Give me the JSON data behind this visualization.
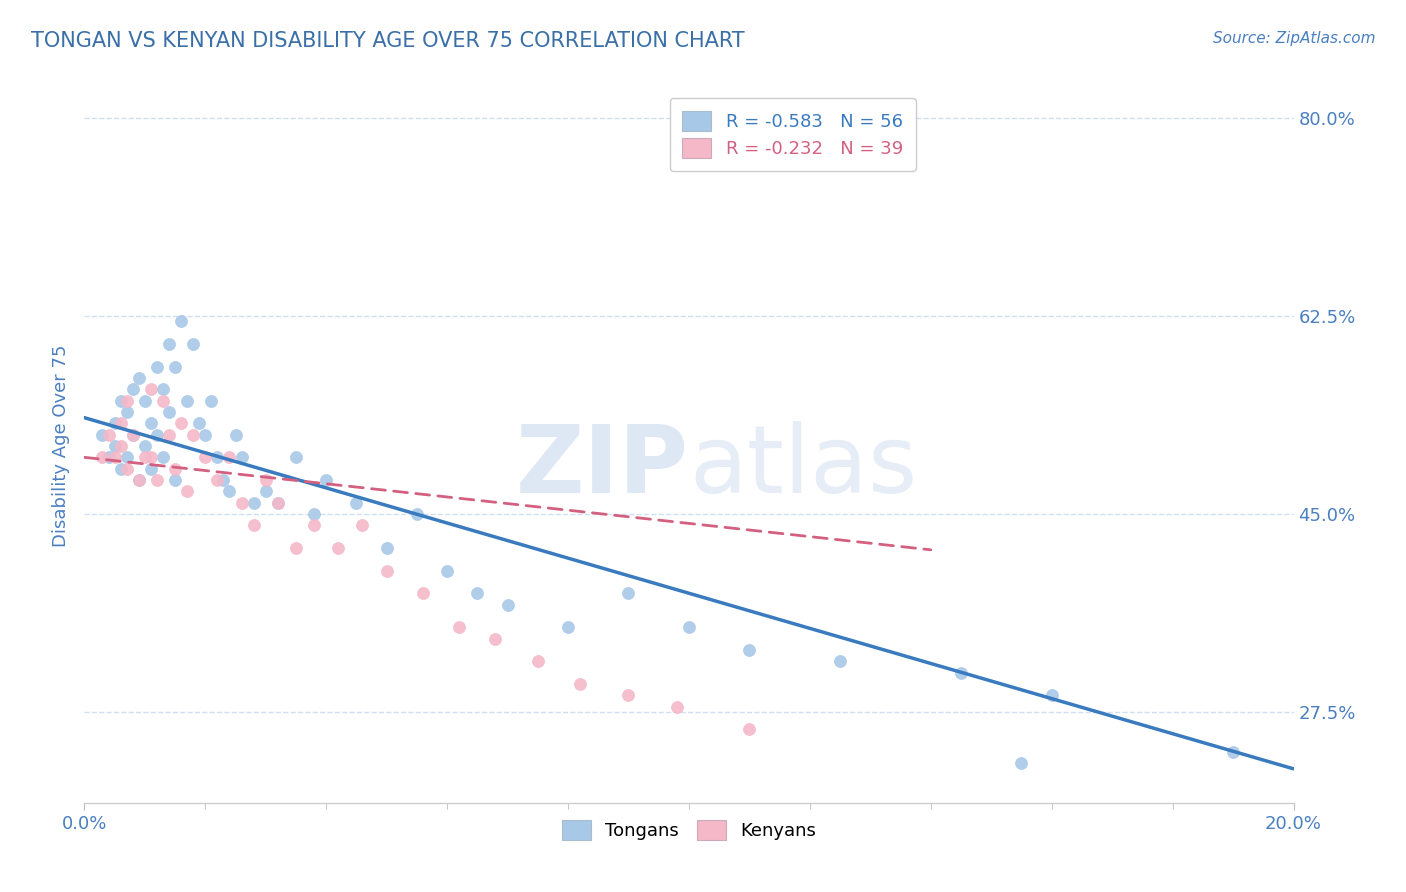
{
  "title": "TONGAN VS KENYAN DISABILITY AGE OVER 75 CORRELATION CHART",
  "source_text": "Source: ZipAtlas.com",
  "ylabel": "Disability Age Over 75",
  "xlim": [
    0.0,
    0.2
  ],
  "ylim": [
    0.195,
    0.825
  ],
  "yticks": [
    0.275,
    0.45,
    0.625,
    0.8
  ],
  "ytick_labels": [
    "27.5%",
    "45.0%",
    "62.5%",
    "80.0%"
  ],
  "tonga_color": "#a8c8e8",
  "kenya_color": "#f4b8c8",
  "tonga_line_color": "#3a7abf",
  "kenya_line_color": "#d46080",
  "title_color": "#3a6fa8",
  "tick_color": "#4a7fc0",
  "grid_color": "#d0dff0",
  "background_color": "#ffffff",
  "tonga_R": -0.583,
  "tonga_N": 56,
  "kenya_R": -0.232,
  "kenya_N": 39,
  "figsize": [
    14.06,
    8.92
  ],
  "dpi": 100,
  "tonga_x": [
    0.003,
    0.004,
    0.005,
    0.005,
    0.006,
    0.006,
    0.007,
    0.007,
    0.008,
    0.008,
    0.009,
    0.009,
    0.01,
    0.01,
    0.011,
    0.011,
    0.012,
    0.012,
    0.013,
    0.013,
    0.014,
    0.014,
    0.015,
    0.015,
    0.016,
    0.017,
    0.018,
    0.019,
    0.02,
    0.021,
    0.022,
    0.023,
    0.024,
    0.025,
    0.026,
    0.028,
    0.03,
    0.032,
    0.035,
    0.038,
    0.04,
    0.045,
    0.05,
    0.055,
    0.06,
    0.065,
    0.07,
    0.08,
    0.09,
    0.1,
    0.11,
    0.125,
    0.145,
    0.16,
    0.155,
    0.19
  ],
  "tonga_y": [
    0.52,
    0.5,
    0.51,
    0.53,
    0.49,
    0.55,
    0.5,
    0.54,
    0.52,
    0.56,
    0.48,
    0.57,
    0.51,
    0.55,
    0.49,
    0.53,
    0.58,
    0.52,
    0.5,
    0.56,
    0.6,
    0.54,
    0.48,
    0.58,
    0.62,
    0.55,
    0.6,
    0.53,
    0.52,
    0.55,
    0.5,
    0.48,
    0.47,
    0.52,
    0.5,
    0.46,
    0.47,
    0.46,
    0.5,
    0.45,
    0.48,
    0.46,
    0.42,
    0.45,
    0.4,
    0.38,
    0.37,
    0.35,
    0.38,
    0.35,
    0.33,
    0.32,
    0.31,
    0.29,
    0.23,
    0.24
  ],
  "kenya_x": [
    0.003,
    0.004,
    0.005,
    0.006,
    0.006,
    0.007,
    0.007,
    0.008,
    0.009,
    0.01,
    0.011,
    0.011,
    0.012,
    0.013,
    0.014,
    0.015,
    0.016,
    0.017,
    0.018,
    0.02,
    0.022,
    0.024,
    0.026,
    0.028,
    0.03,
    0.032,
    0.035,
    0.038,
    0.042,
    0.046,
    0.05,
    0.056,
    0.062,
    0.068,
    0.075,
    0.082,
    0.09,
    0.098,
    0.11
  ],
  "kenya_y": [
    0.5,
    0.52,
    0.5,
    0.51,
    0.53,
    0.49,
    0.55,
    0.52,
    0.48,
    0.5,
    0.56,
    0.5,
    0.48,
    0.55,
    0.52,
    0.49,
    0.53,
    0.47,
    0.52,
    0.5,
    0.48,
    0.5,
    0.46,
    0.44,
    0.48,
    0.46,
    0.42,
    0.44,
    0.42,
    0.44,
    0.4,
    0.38,
    0.35,
    0.34,
    0.32,
    0.3,
    0.29,
    0.28,
    0.26
  ]
}
